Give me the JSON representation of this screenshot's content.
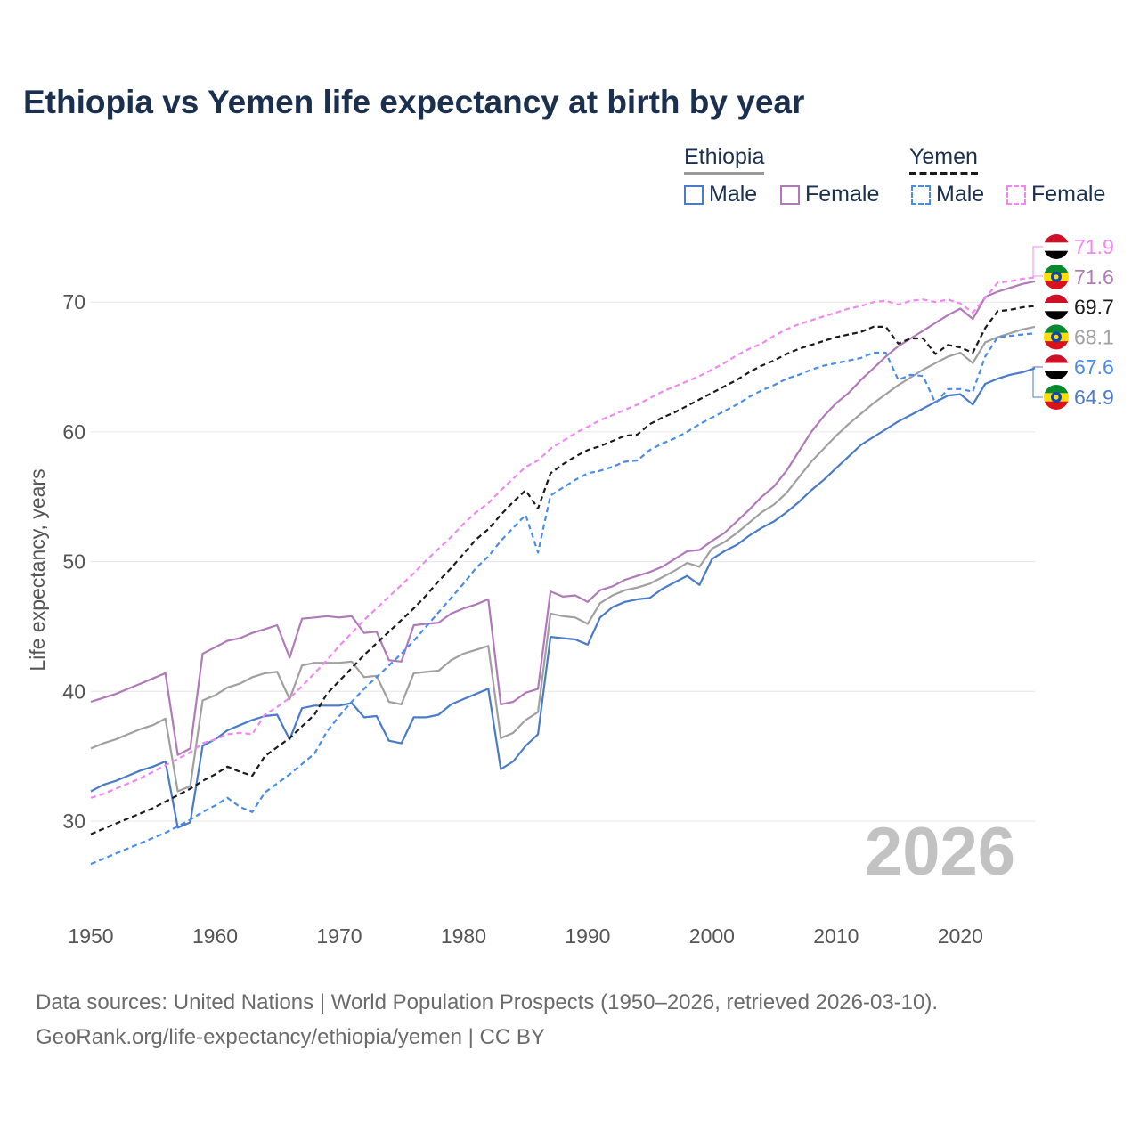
{
  "chart_data": {
    "type": "line",
    "title": "Ethiopia vs Yemen life expectancy at birth by year",
    "ylabel": "Life expectancy, years",
    "xlabel": "",
    "xlim": [
      1950,
      2026
    ],
    "ylim": [
      24,
      75
    ],
    "yticks": [
      30,
      40,
      50,
      60,
      70
    ],
    "xticks": [
      1950,
      1960,
      1970,
      1980,
      1990,
      2000,
      2010,
      2020
    ],
    "grid": true,
    "year_watermark": "2026",
    "legend": {
      "ethiopia_label": "Ethiopia",
      "yemen_label": "Yemen",
      "male_label": "Male",
      "female_label": "Female"
    },
    "colors": {
      "eth_male": "#4a7bc8",
      "eth_female": "#b07ab8",
      "eth_total": "#a0a0a0",
      "yem_male": "#4a8de8",
      "yem_female": "#f088f0",
      "yem_total": "#1a1a1a"
    },
    "x": [
      1950,
      1951,
      1952,
      1953,
      1954,
      1955,
      1956,
      1957,
      1958,
      1959,
      1960,
      1961,
      1962,
      1963,
      1964,
      1965,
      1966,
      1967,
      1968,
      1969,
      1970,
      1971,
      1972,
      1973,
      1974,
      1975,
      1976,
      1977,
      1978,
      1979,
      1980,
      1981,
      1982,
      1983,
      1984,
      1985,
      1986,
      1987,
      1988,
      1989,
      1990,
      1991,
      1992,
      1993,
      1994,
      1995,
      1996,
      1997,
      1998,
      1999,
      2000,
      2001,
      2002,
      2003,
      2004,
      2005,
      2006,
      2007,
      2008,
      2009,
      2010,
      2011,
      2012,
      2013,
      2014,
      2015,
      2016,
      2017,
      2018,
      2019,
      2020,
      2021,
      2022,
      2023,
      2024,
      2025,
      2026
    ],
    "series": [
      {
        "name": "Ethiopia Male",
        "key": "eth_male",
        "dashed": false,
        "values": [
          32.3,
          32.8,
          33.1,
          33.5,
          33.9,
          34.2,
          34.6,
          29.5,
          29.9,
          35.8,
          36.3,
          37.0,
          37.4,
          37.8,
          38.1,
          38.2,
          36.3,
          38.7,
          38.9,
          38.9,
          38.9,
          39.1,
          38.0,
          38.1,
          36.2,
          36.0,
          38.0,
          38.0,
          38.2,
          39.0,
          39.4,
          39.8,
          40.2,
          34.0,
          34.6,
          35.8,
          36.7,
          44.2,
          44.1,
          44.0,
          43.6,
          45.7,
          46.5,
          46.9,
          47.1,
          47.2,
          47.9,
          48.4,
          48.9,
          48.2,
          50.2,
          50.8,
          51.3,
          52.0,
          52.6,
          53.1,
          53.8,
          54.6,
          55.5,
          56.3,
          57.2,
          58.1,
          59.0,
          59.6,
          60.2,
          60.8,
          61.3,
          61.8,
          62.3,
          62.8,
          62.9,
          62.1,
          63.7,
          64.1,
          64.4,
          64.6,
          64.9
        ]
      },
      {
        "name": "Ethiopia Female",
        "key": "eth_female",
        "dashed": false,
        "values": [
          39.2,
          39.5,
          39.8,
          40.2,
          40.6,
          41.0,
          41.4,
          35.1,
          35.6,
          42.9,
          43.4,
          43.9,
          44.1,
          44.5,
          44.8,
          45.1,
          42.6,
          45.6,
          45.7,
          45.8,
          45.7,
          45.8,
          44.5,
          44.6,
          42.4,
          42.3,
          45.1,
          45.2,
          45.3,
          46.0,
          46.4,
          46.7,
          47.1,
          39.0,
          39.2,
          39.9,
          40.2,
          47.7,
          47.3,
          47.4,
          46.9,
          47.8,
          48.1,
          48.6,
          48.9,
          49.2,
          49.6,
          50.2,
          50.8,
          50.9,
          51.6,
          52.2,
          53.1,
          54.0,
          55.0,
          55.8,
          57.0,
          58.5,
          60.0,
          61.2,
          62.2,
          63.0,
          64.0,
          64.9,
          65.8,
          66.6,
          67.2,
          67.8,
          68.4,
          69.0,
          69.5,
          68.7,
          70.4,
          70.8,
          71.1,
          71.4,
          71.6
        ]
      },
      {
        "name": "Ethiopia",
        "key": "eth_total",
        "dashed": false,
        "values": [
          35.6,
          36.0,
          36.3,
          36.7,
          37.1,
          37.4,
          37.9,
          32.3,
          32.7,
          39.3,
          39.7,
          40.3,
          40.6,
          41.1,
          41.4,
          41.5,
          39.4,
          42.0,
          42.2,
          42.2,
          42.2,
          42.3,
          41.1,
          41.2,
          39.2,
          39.0,
          41.4,
          41.5,
          41.6,
          42.4,
          42.9,
          43.2,
          43.5,
          36.4,
          36.8,
          37.8,
          38.4,
          46.0,
          45.8,
          45.7,
          45.2,
          46.8,
          47.4,
          47.8,
          48.0,
          48.3,
          48.8,
          49.3,
          49.9,
          49.6,
          51.0,
          51.5,
          52.2,
          53.0,
          53.8,
          54.4,
          55.3,
          56.5,
          57.7,
          58.7,
          59.7,
          60.6,
          61.4,
          62.2,
          62.9,
          63.6,
          64.2,
          64.8,
          65.3,
          65.8,
          66.1,
          65.3,
          66.9,
          67.3,
          67.6,
          67.9,
          68.1
        ]
      },
      {
        "name": "Yemen Male",
        "key": "yem_male",
        "dashed": true,
        "values": [
          26.7,
          27.1,
          27.5,
          27.9,
          28.3,
          28.7,
          29.1,
          29.6,
          30.1,
          30.7,
          31.2,
          31.8,
          31.1,
          30.7,
          32.2,
          32.9,
          33.6,
          34.4,
          35.2,
          36.9,
          38.1,
          39.2,
          40.2,
          41.1,
          42.0,
          42.9,
          43.9,
          45.0,
          46.1,
          47.2,
          48.3,
          49.5,
          50.4,
          51.6,
          52.6,
          53.6,
          50.7,
          55.1,
          55.7,
          56.3,
          56.8,
          57.0,
          57.3,
          57.7,
          57.8,
          58.6,
          59.1,
          59.5,
          60.0,
          60.6,
          61.1,
          61.6,
          62.1,
          62.7,
          63.2,
          63.6,
          64.1,
          64.4,
          64.8,
          65.1,
          65.3,
          65.5,
          65.7,
          66.1,
          66.1,
          64.0,
          64.4,
          64.3,
          62.2,
          63.3,
          63.3,
          63.1,
          65.8,
          67.3,
          67.4,
          67.5,
          67.6
        ]
      },
      {
        "name": "Yemen Female",
        "key": "yem_female",
        "dashed": true,
        "values": [
          31.8,
          32.1,
          32.5,
          32.9,
          33.3,
          33.8,
          34.3,
          34.8,
          35.3,
          36.0,
          36.3,
          36.7,
          36.8,
          36.7,
          38.2,
          38.8,
          39.5,
          40.4,
          41.4,
          42.4,
          43.5,
          44.5,
          45.5,
          46.4,
          47.3,
          48.2,
          49.1,
          50.1,
          51.0,
          51.9,
          52.9,
          53.8,
          54.5,
          55.5,
          56.4,
          57.3,
          57.8,
          58.7,
          59.3,
          59.9,
          60.4,
          60.9,
          61.3,
          61.7,
          62.1,
          62.6,
          63.1,
          63.5,
          63.9,
          64.3,
          64.8,
          65.3,
          65.9,
          66.4,
          66.8,
          67.4,
          67.9,
          68.3,
          68.6,
          68.9,
          69.2,
          69.5,
          69.7,
          70.0,
          70.1,
          69.8,
          70.1,
          70.2,
          70.0,
          70.2,
          69.9,
          69.2,
          70.3,
          71.5,
          71.6,
          71.8,
          71.9
        ]
      },
      {
        "name": "Yemen",
        "key": "yem_total",
        "dashed": true,
        "values": [
          29.0,
          29.4,
          29.8,
          30.2,
          30.6,
          31.0,
          31.5,
          32.0,
          32.5,
          33.1,
          33.6,
          34.2,
          33.8,
          33.5,
          35.0,
          35.7,
          36.4,
          37.3,
          38.2,
          39.8,
          40.8,
          41.8,
          42.8,
          43.7,
          44.6,
          45.5,
          46.4,
          47.4,
          48.5,
          49.5,
          50.6,
          51.7,
          52.5,
          53.6,
          54.6,
          55.5,
          54.1,
          56.8,
          57.5,
          58.1,
          58.6,
          58.9,
          59.3,
          59.7,
          59.8,
          60.6,
          61.1,
          61.5,
          62.0,
          62.5,
          63.0,
          63.5,
          64.0,
          64.6,
          65.1,
          65.5,
          66.0,
          66.4,
          66.7,
          67.0,
          67.3,
          67.5,
          67.7,
          68.1,
          68.1,
          66.8,
          67.2,
          67.2,
          66.0,
          66.7,
          66.5,
          66.1,
          68.0,
          69.3,
          69.4,
          69.6,
          69.7
        ]
      }
    ],
    "end_labels": [
      {
        "value": "71.9",
        "country": "yemen",
        "key": "yem_female"
      },
      {
        "value": "71.6",
        "country": "ethiopia",
        "key": "eth_female"
      },
      {
        "value": "69.7",
        "country": "yemen",
        "key": "yem_total"
      },
      {
        "value": "68.1",
        "country": "ethiopia",
        "key": "eth_total"
      },
      {
        "value": "67.6",
        "country": "yemen",
        "key": "yem_male"
      },
      {
        "value": "64.9",
        "country": "ethiopia",
        "key": "eth_male"
      }
    ]
  },
  "footer": {
    "line1": "Data sources: United Nations | World Population Prospects (1950–2026, retrieved 2026-03-10).",
    "line2": "GeoRank.org/life-expectancy/ethiopia/yemen | CC BY"
  }
}
